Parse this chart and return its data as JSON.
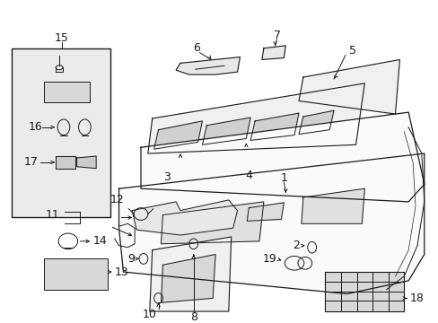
{
  "bg_color": "#ffffff",
  "fig_width": 4.89,
  "fig_height": 3.6,
  "dpi": 100,
  "lc": "#1a1a1a",
  "lw": 0.7,
  "fs": 8.5
}
